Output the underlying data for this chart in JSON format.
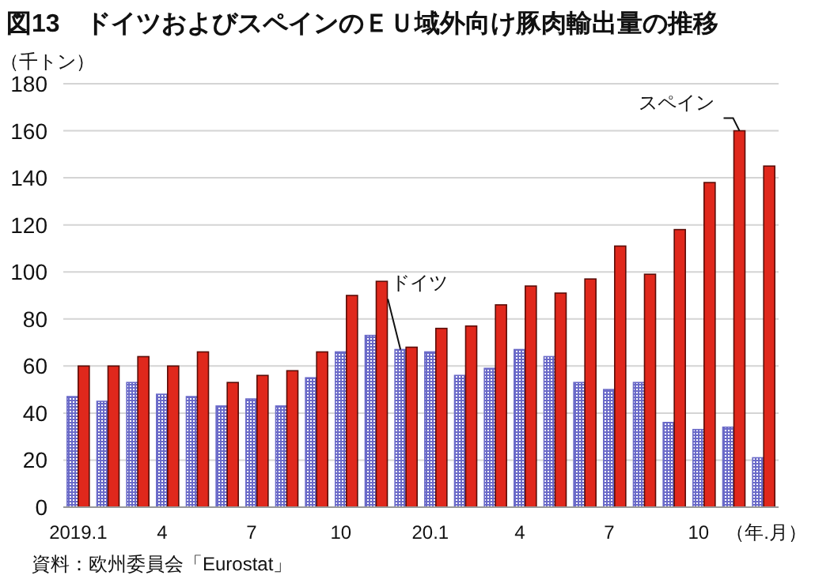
{
  "chart_data": {
    "type": "bar",
    "title": "図13　ドイツおよびスペインのＥＵ域外向け豚肉輸出量の推移",
    "ylabel": "（千トン）",
    "xlabel": "（年.月）",
    "categories": [
      "2019.1",
      null,
      null,
      "4",
      null,
      null,
      "7",
      null,
      null,
      "10",
      null,
      null,
      "20.1",
      null,
      null,
      "4",
      null,
      null,
      "7",
      null,
      null,
      "10",
      null,
      null
    ],
    "series": [
      {
        "name": "ドイツ",
        "color": "#6a6ac8",
        "values": [
          47,
          45,
          53,
          48,
          47,
          43,
          46,
          43,
          55,
          66,
          73,
          67,
          66,
          56,
          59,
          67,
          64,
          53,
          50,
          53,
          36,
          33,
          34,
          21
        ]
      },
      {
        "name": "スペイン",
        "color": "#e0281c",
        "values": [
          60,
          60,
          64,
          60,
          66,
          53,
          56,
          58,
          66,
          90,
          96,
          68,
          76,
          77,
          86,
          94,
          91,
          97,
          111,
          99,
          118,
          138,
          160,
          145
        ]
      }
    ],
    "ylim": [
      0,
      180
    ],
    "yticks": [
      0,
      20,
      40,
      60,
      80,
      100,
      120,
      140,
      160,
      180
    ],
    "grid": "y",
    "annotations": [
      "資料：欧州委員会「Eurostat」"
    ]
  }
}
